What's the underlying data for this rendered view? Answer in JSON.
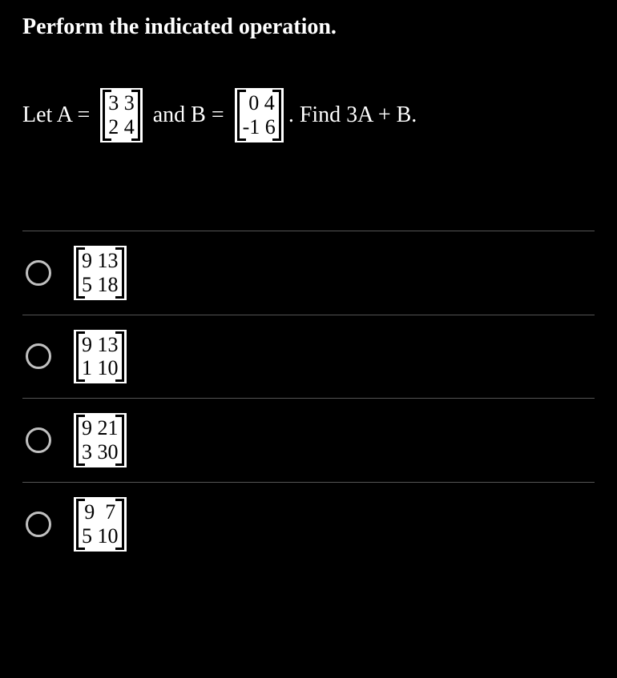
{
  "instruction": "Perform the indicated operation.",
  "problem": {
    "pre_A": "Let A = ",
    "between": " and B = ",
    "post_B": ". Find 3A + B.",
    "matrix_A": {
      "r1": "3 3",
      "r2": "2 4"
    },
    "matrix_B": {
      "r1": " 0 4",
      "r2": "-1 6"
    }
  },
  "choices": [
    {
      "r1": "9 13",
      "r2": "5 18"
    },
    {
      "r1": "9 13",
      "r2": "1 10"
    },
    {
      "r1": "9 21",
      "r2": "3 30"
    },
    {
      "r1": "9  7",
      "r2": "5 10"
    }
  ],
  "colors": {
    "background": "#000000",
    "text": "#ffffff",
    "matrix_bg": "#ffffff",
    "matrix_text": "#000000",
    "divider": "#555555",
    "radio_border": "#c0c0c0"
  }
}
